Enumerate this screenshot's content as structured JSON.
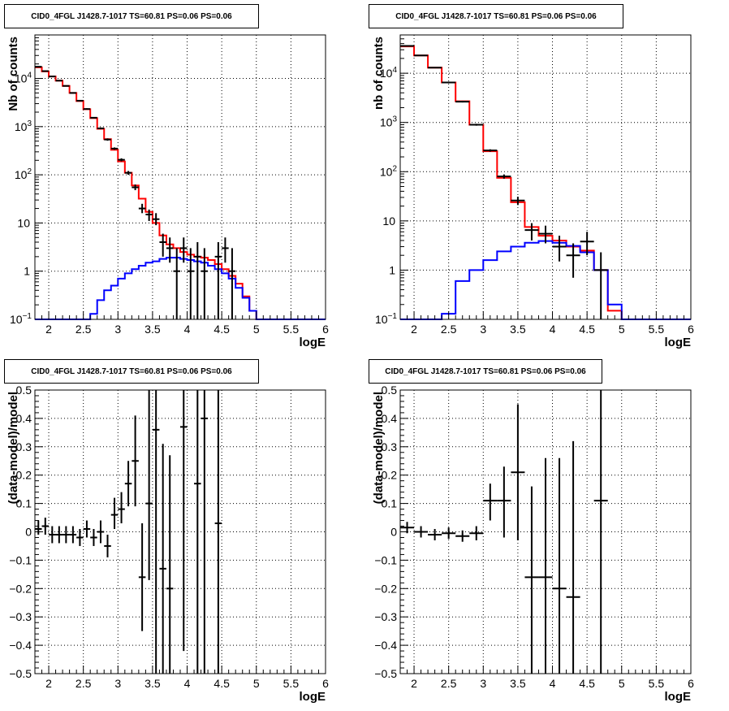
{
  "panels": [
    {
      "id": "p1",
      "title": "CID0_4FGL J1428.7-1017 TS=60.81 PS=0.06 PS=0.06",
      "ylabel": "Nb of counts",
      "xlabel": "logE"
    },
    {
      "id": "p2",
      "title": "CID0_4FGL J1428.7-1017 TS=60.81 PS=0.06 PS=0.06",
      "ylabel": "nb of counts",
      "xlabel": "logE"
    },
    {
      "id": "p3",
      "title": "CID0_4FGL J1428.7-1017 TS=60.81 PS=0.06 PS=0.06",
      "ylabel": "(data-model)/model",
      "xlabel": "logE"
    },
    {
      "id": "p4",
      "title": "CID0_4FGL J1428.7-1017 TS=60.81 PS=0.06 PS=0.06",
      "ylabel": "(data-model)/model",
      "xlabel": "logE"
    }
  ],
  "chart_data": [
    {
      "type": "line",
      "title": "CID0_4FGL J1428.7-1017 TS=60.81 PS=0.06 PS=0.06",
      "xlabel": "logE",
      "ylabel": "Nb of counts",
      "xlim": [
        1.8,
        6.0
      ],
      "ylim": [
        0.1,
        80000
      ],
      "yscale": "log",
      "grid": true,
      "xticks": [
        "2",
        "2.5",
        "3",
        "3.5",
        "4",
        "4.5",
        "5",
        "5.5",
        "6"
      ],
      "yticks": [
        "10⁻¹",
        "1",
        "10",
        "10²",
        "10³",
        "10⁴"
      ],
      "bin_edges": [
        1.8,
        1.9,
        2.0,
        2.1,
        2.2,
        2.3,
        2.4,
        2.5,
        2.6,
        2.7,
        2.8,
        2.9,
        3.0,
        3.1,
        3.2,
        3.3,
        3.4,
        3.5,
        3.6,
        3.7,
        3.8,
        3.9,
        4.0,
        4.1,
        4.2,
        4.3,
        4.4,
        4.5,
        4.6,
        4.7,
        4.8,
        4.9,
        5.0,
        5.1,
        5.2,
        5.3,
        5.4,
        5.5,
        5.6,
        5.7,
        5.8,
        5.9,
        6.0
      ],
      "series": [
        {
          "color": "#ff0000",
          "style": "step",
          "values": [
            17000,
            14000,
            11000,
            9000,
            7000,
            5000,
            3400,
            2300,
            1500,
            900,
            550,
            330,
            190,
            110,
            60,
            32,
            17,
            10,
            5.5,
            3.6,
            3.0,
            2.5,
            2.2,
            2.0,
            1.9,
            1.7,
            1.4,
            1.1,
            0.8,
            0.55,
            0.3,
            0.15,
            0.1,
            0.1,
            0.1,
            0.1,
            0.1,
            0.1,
            0.1,
            0.1,
            0.1,
            0.1
          ]
        },
        {
          "color": "#0000ff",
          "style": "step",
          "values": [
            0.1,
            0.1,
            0.1,
            0.1,
            0.1,
            0.1,
            0.1,
            0.1,
            0.13,
            0.25,
            0.4,
            0.5,
            0.7,
            0.9,
            1.1,
            1.3,
            1.5,
            1.6,
            1.8,
            1.9,
            1.9,
            1.8,
            1.7,
            1.6,
            1.5,
            1.3,
            1.1,
            0.9,
            0.7,
            0.45,
            0.28,
            0.15,
            0.1,
            0.1,
            0.1,
            0.1,
            0.1,
            0.1,
            0.1,
            0.1,
            0.1,
            0.1
          ]
        },
        {
          "color": "#000000",
          "style": "errorbar",
          "points": [
            {
              "x": 1.85,
              "y": 17500,
              "lo": 17000,
              "hi": 18000
            },
            {
              "x": 1.95,
              "y": 14200,
              "lo": 13900,
              "hi": 14500
            },
            {
              "x": 2.05,
              "y": 11000,
              "lo": 10800,
              "hi": 11200
            },
            {
              "x": 2.15,
              "y": 9000,
              "lo": 8800,
              "hi": 9200
            },
            {
              "x": 2.25,
              "y": 7000,
              "lo": 6850,
              "hi": 7150
            },
            {
              "x": 2.35,
              "y": 5000,
              "lo": 4880,
              "hi": 5120
            },
            {
              "x": 2.45,
              "y": 3450,
              "lo": 3350,
              "hi": 3550
            },
            {
              "x": 2.55,
              "y": 2320,
              "lo": 2250,
              "hi": 2400
            },
            {
              "x": 2.65,
              "y": 1530,
              "lo": 1480,
              "hi": 1580
            },
            {
              "x": 2.75,
              "y": 920,
              "lo": 880,
              "hi": 960
            },
            {
              "x": 2.85,
              "y": 540,
              "lo": 510,
              "hi": 570
            },
            {
              "x": 2.95,
              "y": 350,
              "lo": 330,
              "hi": 370
            },
            {
              "x": 3.05,
              "y": 205,
              "lo": 190,
              "hi": 220
            },
            {
              "x": 3.15,
              "y": 110,
              "lo": 100,
              "hi": 120
            },
            {
              "x": 3.25,
              "y": 55,
              "lo": 48,
              "hi": 63
            },
            {
              "x": 3.35,
              "y": 20,
              "lo": 16,
              "hi": 25
            },
            {
              "x": 3.45,
              "y": 15,
              "lo": 11,
              "hi": 19
            },
            {
              "x": 3.55,
              "y": 12,
              "lo": 9,
              "hi": 16
            },
            {
              "x": 3.65,
              "y": 4,
              "lo": 2,
              "hi": 6
            },
            {
              "x": 3.75,
              "y": 3,
              "lo": 1.5,
              "hi": 5
            },
            {
              "x": 3.85,
              "y": 1,
              "lo": 0.1,
              "hi": 3
            },
            {
              "x": 3.95,
              "y": 3,
              "lo": 1.5,
              "hi": 5
            },
            {
              "x": 4.05,
              "y": 1,
              "lo": 0.1,
              "hi": 3
            },
            {
              "x": 4.15,
              "y": 2,
              "lo": 0.1,
              "hi": 4
            },
            {
              "x": 4.25,
              "y": 1,
              "lo": 0.1,
              "hi": 3
            },
            {
              "x": 4.45,
              "y": 2,
              "lo": 0.1,
              "hi": 4
            },
            {
              "x": 4.55,
              "y": 3,
              "lo": 1.5,
              "hi": 5
            },
            {
              "x": 4.65,
              "y": 1,
              "lo": 0.1,
              "hi": 3
            }
          ]
        }
      ]
    },
    {
      "type": "line",
      "title": "CID0_4FGL J1428.7-1017 TS=60.81 PS=0.06 PS=0.06",
      "xlabel": "logE",
      "ylabel": "nb of counts",
      "xlim": [
        1.8,
        6.0
      ],
      "ylim": [
        0.1,
        60000
      ],
      "yscale": "log",
      "grid": true,
      "xticks": [
        "2",
        "2.5",
        "3",
        "3.5",
        "4",
        "4.5",
        "5",
        "5.5",
        "6"
      ],
      "yticks": [
        "10⁻¹",
        "1",
        "10",
        "10²",
        "10³",
        "10⁴"
      ],
      "bin_edges": [
        1.8,
        2.0,
        2.2,
        2.4,
        2.6,
        2.8,
        3.0,
        3.2,
        3.4,
        3.6,
        3.8,
        4.0,
        4.2,
        4.4,
        4.6,
        4.8,
        5.0,
        5.2,
        5.4,
        5.6,
        5.8,
        6.0
      ],
      "series": [
        {
          "color": "#ff0000",
          "style": "step",
          "values": [
            35000,
            23000,
            13000,
            6500,
            2700,
            900,
            260,
            75,
            24,
            7.5,
            5,
            4,
            3,
            2.5,
            1,
            0.15,
            0.1,
            0.1,
            0.1,
            0.1,
            0.1
          ]
        },
        {
          "color": "#0000ff",
          "style": "step",
          "values": [
            0.1,
            0.1,
            0.1,
            0.13,
            0.6,
            1.0,
            1.6,
            2.4,
            3.0,
            3.6,
            3.9,
            3.6,
            3.1,
            2.3,
            1.0,
            0.2,
            0.1,
            0.1,
            0.1,
            0.1,
            0.1
          ]
        },
        {
          "color": "#000000",
          "style": "errorbar",
          "points": [
            {
              "x": 1.9,
              "y": 36000,
              "lo": 35500,
              "hi": 36500
            },
            {
              "x": 2.1,
              "y": 23000,
              "lo": 22700,
              "hi": 23300
            },
            {
              "x": 2.3,
              "y": 13000,
              "lo": 12800,
              "hi": 13200
            },
            {
              "x": 2.5,
              "y": 6500,
              "lo": 6350,
              "hi": 6650
            },
            {
              "x": 2.7,
              "y": 2650,
              "lo": 2550,
              "hi": 2750
            },
            {
              "x": 2.9,
              "y": 900,
              "lo": 860,
              "hi": 940
            },
            {
              "x": 3.1,
              "y": 270,
              "lo": 255,
              "hi": 285
            },
            {
              "x": 3.3,
              "y": 80,
              "lo": 72,
              "hi": 88
            },
            {
              "x": 3.5,
              "y": 26,
              "lo": 21,
              "hi": 31
            },
            {
              "x": 3.7,
              "y": 6.5,
              "lo": 4,
              "hi": 9
            },
            {
              "x": 3.9,
              "y": 5.5,
              "lo": 3.5,
              "hi": 8
            },
            {
              "x": 4.1,
              "y": 3,
              "lo": 1.5,
              "hi": 5
            },
            {
              "x": 4.3,
              "y": 2,
              "lo": 0.7,
              "hi": 3.5
            },
            {
              "x": 4.5,
              "y": 3.8,
              "lo": 2,
              "hi": 6
            },
            {
              "x": 4.7,
              "y": 1,
              "lo": 0.1,
              "hi": 2.3
            }
          ]
        }
      ]
    },
    {
      "type": "scatter",
      "title": "CID0_4FGL J1428.7-1017 TS=60.81 PS=0.06 PS=0.06",
      "xlabel": "logE",
      "ylabel": "(data-model)/model",
      "xlim": [
        1.8,
        6.0
      ],
      "ylim": [
        -0.5,
        0.5
      ],
      "grid": true,
      "xticks": [
        "2",
        "2.5",
        "3",
        "3.5",
        "4",
        "4.5",
        "5",
        "5.5",
        "6"
      ],
      "yticks": [
        "−0.5",
        "−0.4",
        "−0.3",
        "−0.2",
        "−0.1",
        "0",
        "0.1",
        "0.2",
        "0.3",
        "0.4",
        "0.5"
      ],
      "bin_width": 0.1,
      "series": [
        {
          "color": "#000000",
          "style": "errorbar",
          "points": [
            {
              "x": 1.85,
              "y": 0.01,
              "lo": -0.01,
              "hi": 0.04
            },
            {
              "x": 1.95,
              "y": 0.02,
              "lo": -0.01,
              "hi": 0.05
            },
            {
              "x": 2.05,
              "y": -0.01,
              "lo": -0.04,
              "hi": 0.02
            },
            {
              "x": 2.15,
              "y": -0.01,
              "lo": -0.04,
              "hi": 0.02
            },
            {
              "x": 2.25,
              "y": -0.01,
              "lo": -0.04,
              "hi": 0.02
            },
            {
              "x": 2.35,
              "y": -0.01,
              "lo": -0.04,
              "hi": 0.02
            },
            {
              "x": 2.45,
              "y": -0.02,
              "lo": -0.05,
              "hi": 0.01
            },
            {
              "x": 2.55,
              "y": 0.01,
              "lo": -0.02,
              "hi": 0.04
            },
            {
              "x": 2.65,
              "y": -0.02,
              "lo": -0.05,
              "hi": 0.01
            },
            {
              "x": 2.75,
              "y": 0.0,
              "lo": -0.04,
              "hi": 0.04
            },
            {
              "x": 2.85,
              "y": -0.05,
              "lo": -0.09,
              "hi": -0.01
            },
            {
              "x": 2.95,
              "y": 0.06,
              "lo": 0.01,
              "hi": 0.12
            },
            {
              "x": 3.05,
              "y": 0.08,
              "lo": 0.03,
              "hi": 0.14
            },
            {
              "x": 3.15,
              "y": 0.17,
              "lo": 0.09,
              "hi": 0.25
            },
            {
              "x": 3.25,
              "y": 0.25,
              "lo": 0.09,
              "hi": 0.41
            },
            {
              "x": 3.35,
              "y": -0.16,
              "lo": -0.35,
              "hi": 0.03
            },
            {
              "x": 3.45,
              "y": 0.1,
              "lo": -0.17,
              "hi": 0.5
            },
            {
              "x": 3.55,
              "y": 0.36,
              "lo": -0.5,
              "hi": 0.5
            },
            {
              "x": 3.65,
              "y": -0.13,
              "lo": -0.5,
              "hi": 0.31
            },
            {
              "x": 3.75,
              "y": -0.2,
              "lo": -0.5,
              "hi": 0.27
            },
            {
              "x": 3.95,
              "y": 0.37,
              "lo": -0.42,
              "hi": 0.5
            },
            {
              "x": 4.15,
              "y": 0.17,
              "lo": -0.5,
              "hi": 0.5
            },
            {
              "x": 4.25,
              "y": 0.4,
              "lo": -0.5,
              "hi": 0.5
            },
            {
              "x": 4.45,
              "y": 0.03,
              "lo": -0.5,
              "hi": 0.5
            }
          ]
        }
      ]
    },
    {
      "type": "scatter",
      "title": "CID0_4FGL J1428.7-1017 TS=60.81 PS=0.06 PS=0.06",
      "xlabel": "logE",
      "ylabel": "(data-model)/model",
      "xlim": [
        1.8,
        6.0
      ],
      "ylim": [
        -0.5,
        0.5
      ],
      "grid": true,
      "xticks": [
        "2",
        "2.5",
        "3",
        "3.5",
        "4",
        "4.5",
        "5",
        "5.5",
        "6"
      ],
      "yticks": [
        "−0.5",
        "−0.4",
        "−0.3",
        "−0.2",
        "−0.1",
        "0",
        "0.1",
        "0.2",
        "0.3",
        "0.4",
        "0.5"
      ],
      "bin_width": 0.2,
      "series": [
        {
          "color": "#000000",
          "style": "errorbar",
          "points": [
            {
              "x": 1.9,
              "y": 0.015,
              "lo": -0.005,
              "hi": 0.035
            },
            {
              "x": 2.1,
              "y": 0.0,
              "lo": -0.02,
              "hi": 0.02
            },
            {
              "x": 2.3,
              "y": -0.01,
              "lo": -0.03,
              "hi": 0.01
            },
            {
              "x": 2.5,
              "y": -0.005,
              "lo": -0.025,
              "hi": 0.015
            },
            {
              "x": 2.7,
              "y": -0.015,
              "lo": -0.035,
              "hi": 0.005
            },
            {
              "x": 2.9,
              "y": -0.005,
              "lo": -0.03,
              "hi": 0.02
            },
            {
              "x": 3.1,
              "y": 0.11,
              "lo": 0.04,
              "hi": 0.17
            },
            {
              "x": 3.3,
              "y": 0.11,
              "lo": -0.02,
              "hi": 0.23
            },
            {
              "x": 3.5,
              "y": 0.21,
              "lo": -0.03,
              "hi": 0.45
            },
            {
              "x": 3.7,
              "y": -0.16,
              "lo": -0.5,
              "hi": 0.16
            },
            {
              "x": 3.9,
              "y": -0.16,
              "lo": -0.5,
              "hi": 0.26
            },
            {
              "x": 4.1,
              "y": -0.2,
              "lo": -0.5,
              "hi": 0.26
            },
            {
              "x": 4.3,
              "y": -0.23,
              "lo": -0.5,
              "hi": 0.32
            },
            {
              "x": 4.7,
              "y": 0.11,
              "lo": -0.5,
              "hi": 0.5
            }
          ]
        }
      ]
    }
  ]
}
